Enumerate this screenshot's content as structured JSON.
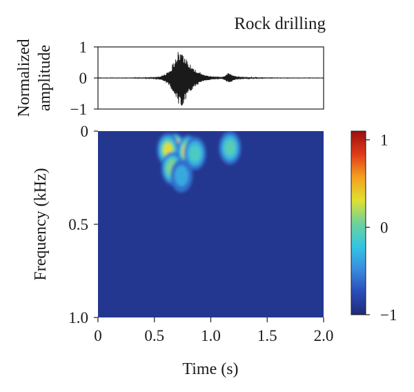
{
  "title": "Rock drilling",
  "chart_data": [
    {
      "type": "line",
      "panel": "waveform",
      "ylabel_lines": [
        "Normalized",
        "amplitude"
      ],
      "xlim": [
        0,
        2.0
      ],
      "ylim": [
        -1,
        1
      ],
      "yticks": [
        "1",
        "0",
        "−1"
      ],
      "ytick_values": [
        1,
        0,
        -1
      ],
      "series": [
        {
          "x": [
            0,
            0.2,
            0.4,
            0.5,
            0.55,
            0.6,
            0.63,
            0.66,
            0.68,
            0.7,
            0.72,
            0.73,
            0.75,
            0.77,
            0.79,
            0.81,
            0.84,
            0.88,
            0.93,
            1.0,
            1.1,
            1.15,
            1.17,
            1.19,
            1.22,
            1.3,
            1.6,
            2.0
          ],
          "y": [
            0,
            0,
            0.01,
            0.02,
            0.05,
            0.15,
            -0.25,
            0.45,
            -0.6,
            0.85,
            -0.9,
            1.0,
            -0.95,
            0.8,
            -0.7,
            0.5,
            -0.4,
            0.25,
            -0.12,
            0.05,
            0.02,
            0.15,
            -0.18,
            0.12,
            -0.05,
            0.02,
            0,
            0
          ],
          "color": "#1a1a1a"
        }
      ]
    },
    {
      "type": "heatmap",
      "panel": "spectrogram",
      "xlabel": "Time (s)",
      "ylabel": "Frequency (kHz)",
      "xlim": [
        0,
        2.0
      ],
      "ylim": [
        0,
        1.0
      ],
      "y_inverted": true,
      "xticks": [
        "0",
        "0.5",
        "1.0",
        "1.5",
        "2.0"
      ],
      "xtick_values": [
        0,
        0.5,
        1.0,
        1.5,
        2.0
      ],
      "yticks": [
        "0",
        "0.5",
        "1.0"
      ],
      "ytick_values": [
        0,
        0.5,
        1.0
      ],
      "background_value": -0.9,
      "blobs": [
        {
          "t": 0.72,
          "f": 0.12,
          "value": 1.0
        },
        {
          "t": 0.68,
          "f": 0.1,
          "value": 0.9
        },
        {
          "t": 0.76,
          "f": 0.15,
          "value": 0.85
        },
        {
          "t": 0.62,
          "f": 0.1,
          "value": 0.3
        },
        {
          "t": 0.8,
          "f": 0.11,
          "value": 0.35
        },
        {
          "t": 0.66,
          "f": 0.2,
          "value": 0.1
        },
        {
          "t": 0.86,
          "f": 0.12,
          "value": -0.1
        },
        {
          "t": 0.74,
          "f": 0.24,
          "value": -0.35
        },
        {
          "t": 1.17,
          "f": 0.09,
          "value": -0.05
        }
      ],
      "colorbar": {
        "ticks": [
          "1",
          "0",
          "−1"
        ],
        "tick_values": [
          1,
          0,
          -1
        ],
        "range": [
          -1,
          1.1
        ],
        "colors": [
          "#1e2a78",
          "#2a4db8",
          "#3a8de0",
          "#34c6e0",
          "#6fd29a",
          "#e0e030",
          "#f5a020",
          "#e03a1a",
          "#9a0f10"
        ]
      }
    }
  ]
}
